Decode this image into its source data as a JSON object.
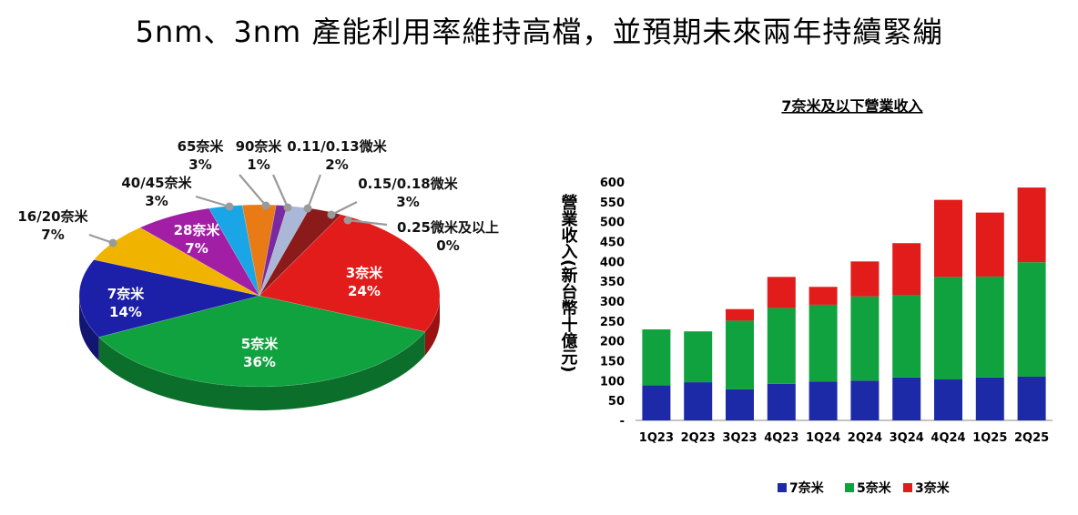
{
  "page": {
    "title": "5nm、3nm 產能利用率維持高檔，並預期未來兩年持續緊繃"
  },
  "chart_data": [
    {
      "type": "pie",
      "title": "",
      "slices": [
        {
          "name": "3奈米",
          "pct_label": "24%",
          "value": 24,
          "color": "#e21b1b"
        },
        {
          "name": "5奈米",
          "pct_label": "36%",
          "value": 36,
          "color": "#10a23f"
        },
        {
          "name": "7奈米",
          "pct_label": "14%",
          "value": 14,
          "color": "#1c1fa8"
        },
        {
          "name": "16/20奈米",
          "pct_label": "7%",
          "value": 7,
          "color": "#f0b400"
        },
        {
          "name": "28奈米",
          "pct_label": "7%",
          "value": 7,
          "color": "#a21ea4"
        },
        {
          "name": "40/45奈米",
          "pct_label": "3%",
          "value": 3,
          "color": "#19a5e6"
        },
        {
          "name": "65奈米",
          "pct_label": "3%",
          "value": 3,
          "color": "#e97b16"
        },
        {
          "name": "90奈米",
          "pct_label": "1%",
          "value": 1,
          "color": "#7a2aa0"
        },
        {
          "name": "0.11/0.13微米",
          "pct_label": "2%",
          "value": 2,
          "color": "#aab7d6"
        },
        {
          "name": "0.15/0.18微米",
          "pct_label": "3%",
          "value": 3,
          "color": "#8b1a1a"
        },
        {
          "name": "0.25微米及以上",
          "pct_label": "0%",
          "value": 0,
          "color": "#d04040"
        }
      ]
    },
    {
      "type": "bar",
      "stacked": true,
      "title": "7奈米及以下營業收入",
      "ylabel": "營業收入(新台幣十億元)",
      "ylim": [
        0,
        600
      ],
      "yticks": [
        "-",
        "50",
        "100",
        "150",
        "200",
        "250",
        "300",
        "350",
        "400",
        "450",
        "500",
        "550",
        "600"
      ],
      "categories": [
        "1Q23",
        "2Q23",
        "3Q23",
        "4Q23",
        "1Q24",
        "2Q24",
        "3Q24",
        "4Q24",
        "1Q25",
        "2Q25"
      ],
      "series": [
        {
          "name": "7奈米",
          "color": "#1c2aa8",
          "values": [
            88,
            96,
            78,
            92,
            98,
            100,
            108,
            103,
            108,
            110
          ]
        },
        {
          "name": "5奈米",
          "color": "#10a23f",
          "values": [
            141,
            128,
            173,
            191,
            193,
            212,
            208,
            258,
            254,
            288
          ]
        },
        {
          "name": "3奈米",
          "color": "#e21b1b",
          "values": [
            0,
            0,
            29,
            78,
            45,
            88,
            130,
            194,
            161,
            188
          ]
        }
      ],
      "grid": false,
      "legend": "bottom"
    }
  ]
}
